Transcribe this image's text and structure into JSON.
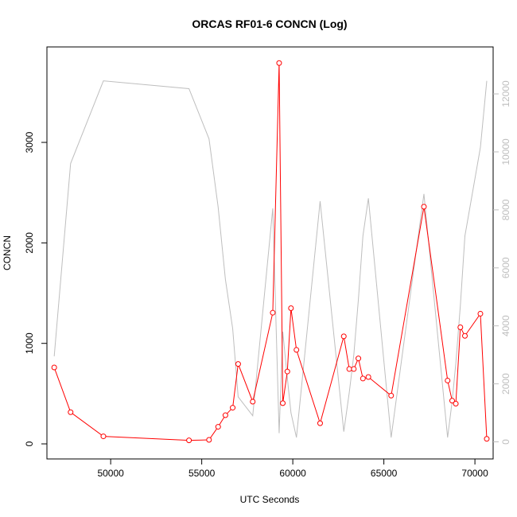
{
  "chart_data": {
    "type": "line",
    "title": "ORCAS RF01-6 CONCN (Log)",
    "xlabel": "UTC Seconds",
    "ylabel": "CONCN",
    "xlim": [
      46500,
      71000
    ],
    "ylim": [
      -150,
      3950
    ],
    "y2lim": [
      -590,
      13620
    ],
    "x_ticks": [
      50000,
      55000,
      60000,
      65000,
      70000
    ],
    "y_ticks": [
      0,
      1000,
      2000,
      3000
    ],
    "y2_ticks": [
      0,
      2000,
      4000,
      6000,
      8000,
      10000,
      12000
    ],
    "x_tick_labels": [
      "50000",
      "55000",
      "60000",
      "65000",
      "70000"
    ],
    "y_tick_labels": [
      "0",
      "1000",
      "2000",
      "3000"
    ],
    "y2_tick_labels": [
      "0",
      "2000",
      "4000",
      "6000",
      "8000",
      "10000",
      "12000"
    ],
    "grid": false,
    "legend": "none",
    "colors": {
      "primary": "#ff0000",
      "secondary": "#bebebe",
      "axis": "#000000"
    },
    "series": [
      {
        "axis": "left",
        "color": "#ff0000",
        "marker": "open-circle",
        "points": [
          [
            46900,
            760
          ],
          [
            47800,
            315
          ],
          [
            49600,
            75
          ],
          [
            54300,
            35
          ],
          [
            55400,
            40
          ],
          [
            55900,
            170
          ],
          [
            56300,
            285
          ],
          [
            56700,
            360
          ],
          [
            57000,
            795
          ],
          [
            57800,
            420
          ],
          [
            58900,
            1305
          ],
          [
            59250,
            3790
          ],
          [
            59450,
            405
          ],
          [
            59700,
            720
          ],
          [
            59900,
            1350
          ],
          [
            60200,
            935
          ],
          [
            61500,
            205
          ],
          [
            62800,
            1070
          ],
          [
            63100,
            745
          ],
          [
            63350,
            745
          ],
          [
            63600,
            850
          ],
          [
            63850,
            650
          ],
          [
            64150,
            665
          ],
          [
            65400,
            480
          ],
          [
            67200,
            2360
          ],
          [
            68500,
            630
          ],
          [
            68750,
            430
          ],
          [
            68950,
            400
          ],
          [
            69200,
            1160
          ],
          [
            69450,
            1075
          ],
          [
            70300,
            1295
          ],
          [
            70650,
            50
          ]
        ]
      },
      {
        "axis": "right",
        "color": "#bebebe",
        "marker": "none",
        "points": [
          [
            46900,
            2950
          ],
          [
            47800,
            9600
          ],
          [
            49600,
            12450
          ],
          [
            54300,
            12180
          ],
          [
            55400,
            10450
          ],
          [
            55900,
            8100
          ],
          [
            56300,
            5600
          ],
          [
            56700,
            3900
          ],
          [
            57000,
            1550
          ],
          [
            57800,
            900
          ],
          [
            58900,
            8050
          ],
          [
            59250,
            300
          ],
          [
            59450,
            3800
          ],
          [
            59700,
            2200
          ],
          [
            59900,
            1000
          ],
          [
            60200,
            150
          ],
          [
            61500,
            8300
          ],
          [
            62800,
            350
          ],
          [
            63100,
            1700
          ],
          [
            63350,
            3000
          ],
          [
            63600,
            4900
          ],
          [
            63850,
            7100
          ],
          [
            64150,
            8400
          ],
          [
            65400,
            150
          ],
          [
            67200,
            8550
          ],
          [
            68500,
            150
          ],
          [
            68750,
            1400
          ],
          [
            68950,
            2700
          ],
          [
            69200,
            4700
          ],
          [
            69450,
            7100
          ],
          [
            70300,
            10150
          ],
          [
            70650,
            12450
          ]
        ]
      }
    ]
  }
}
